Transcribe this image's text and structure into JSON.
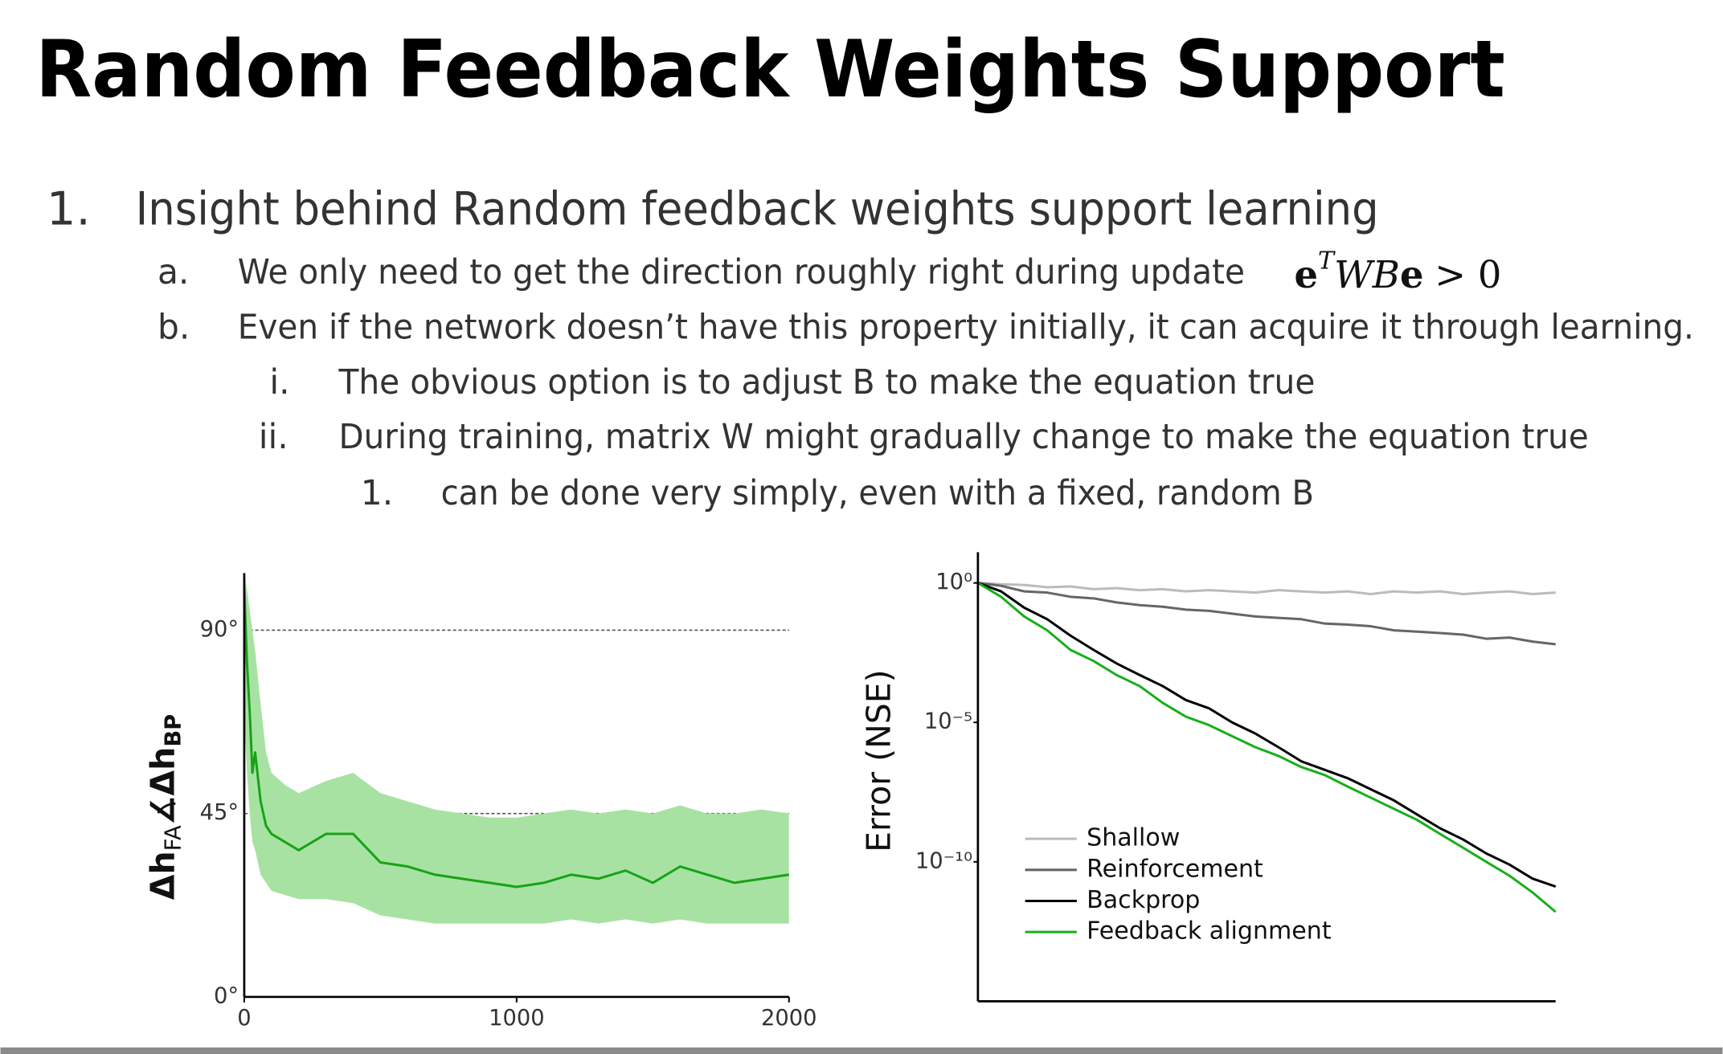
{
  "title": "Random Feedback Weights Support",
  "list": [
    {
      "marker": "1.",
      "text": "Insight behind Random feedback weights support learning",
      "items": [
        {
          "marker": "a.",
          "text": "We only need to get the direction roughly right during update",
          "equation": [
            "e",
            "T",
            "WB",
            "e",
            "> 0"
          ]
        },
        {
          "marker": "b.",
          "text": "Even if the network doesn’t have this property initially, it can acquire it through learning.",
          "items": [
            {
              "marker": "i.",
              "text": "The obvious option is to adjust B to make the equation true"
            },
            {
              "marker": "ii.",
              "text": "During training, matrix W might gradually change to make the equation true",
              "items": [
                {
                  "marker": "1.",
                  "text": "can be done very simply, even with a fixed, random B"
                }
              ]
            }
          ]
        }
      ]
    }
  ],
  "chart_data": [
    {
      "type": "line",
      "ylabel": [
        "Δh",
        "FA",
        "∡Δh",
        "BP"
      ],
      "x": [
        0,
        10,
        20,
        30,
        40,
        60,
        80,
        100,
        150,
        200,
        300,
        400,
        500,
        600,
        700,
        800,
        900,
        1000,
        1100,
        1200,
        1300,
        1400,
        1500,
        1600,
        1700,
        1800,
        1900,
        2000
      ],
      "xlim": [
        0,
        2000
      ],
      "xticks": [
        0,
        1000,
        2000
      ],
      "ylim": [
        0,
        104
      ],
      "yticks": [
        {
          "value": 0,
          "label": "0°"
        },
        {
          "value": 45,
          "label": "45°"
        },
        {
          "value": 90,
          "label": "90°"
        }
      ],
      "grid": true,
      "series": [
        {
          "color": "#17a317",
          "band_color": "#a8e2a3",
          "values": [
            100,
            82,
            70,
            55,
            60,
            48,
            42,
            40,
            38,
            36,
            40,
            40,
            33,
            32,
            30,
            29,
            28,
            27,
            28,
            30,
            29,
            31,
            28,
            32,
            30,
            28,
            29,
            30
          ],
          "upper": [
            104,
            100,
            95,
            90,
            85,
            72,
            60,
            55,
            52,
            50,
            53,
            55,
            50,
            48,
            46,
            45,
            44,
            44,
            45,
            46,
            45,
            46,
            45,
            47,
            45,
            45,
            46,
            45
          ],
          "lower": [
            70,
            55,
            45,
            38,
            36,
            30,
            28,
            26,
            25,
            24,
            24,
            23,
            20,
            19,
            18,
            18,
            18,
            18,
            18,
            19,
            18,
            19,
            18,
            19,
            18,
            18,
            18,
            18
          ]
        }
      ]
    },
    {
      "type": "line",
      "ylabel": "Error (NSE)",
      "log_y": true,
      "x": [
        0,
        4,
        8,
        12,
        16,
        20,
        24,
        28,
        32,
        36,
        40,
        44,
        48,
        52,
        56,
        60,
        64,
        68,
        72,
        76,
        80,
        84,
        88,
        92,
        96,
        100
      ],
      "xlim": [
        0,
        100
      ],
      "ylim": [
        1e-15,
        12.6
      ],
      "yticks": [
        {
          "value": 1,
          "label": "10⁰"
        },
        {
          "value": 1e-05,
          "label": "10⁻⁵"
        },
        {
          "value": 1e-10,
          "label": "10⁻¹⁰"
        }
      ],
      "legend": "lower left",
      "series": [
        {
          "name": "Shallow",
          "color": "#bbbbbb",
          "values": [
            1,
            0.9,
            0.85,
            0.7,
            0.75,
            0.6,
            0.65,
            0.55,
            0.6,
            0.5,
            0.55,
            0.5,
            0.45,
            0.55,
            0.5,
            0.45,
            0.5,
            0.4,
            0.5,
            0.45,
            0.5,
            0.4,
            0.45,
            0.5,
            0.4,
            0.45
          ]
        },
        {
          "name": "Reinforcement",
          "color": "#666666",
          "values": [
            1,
            0.79,
            0.5,
            0.45,
            0.32,
            0.28,
            0.2,
            0.16,
            0.14,
            0.11,
            0.1,
            0.079,
            0.063,
            0.056,
            0.05,
            0.035,
            0.032,
            0.028,
            0.02,
            0.018,
            0.016,
            0.014,
            0.01,
            0.011,
            0.0079,
            0.0063
          ]
        },
        {
          "name": "Backprop",
          "color": "#000000",
          "values": [
            1,
            0.5,
            0.13,
            0.05,
            0.013,
            0.004,
            0.0013,
            0.0005,
            0.0002,
            6.3e-05,
            3.2e-05,
            1e-05,
            4e-06,
            1.3e-06,
            4e-07,
            2e-07,
            1e-07,
            4e-08,
            1.6e-08,
            5e-09,
            1.6e-09,
            6.3e-10,
            2e-10,
            8e-11,
            2.5e-11,
            1.3e-11
          ]
        },
        {
          "name": "Feedback alignment",
          "color": "#17b01a",
          "values": [
            1,
            0.32,
            0.063,
            0.02,
            0.004,
            0.0016,
            0.0005,
            0.0002,
            5e-05,
            1.6e-05,
            8e-06,
            3.2e-06,
            1.3e-06,
            6.3e-07,
            2.5e-07,
            1.3e-07,
            5e-08,
            2e-08,
            8e-09,
            3.2e-09,
            1e-09,
            3.2e-10,
            1e-10,
            3.2e-11,
            8e-12,
            1.6e-12
          ]
        }
      ]
    }
  ]
}
